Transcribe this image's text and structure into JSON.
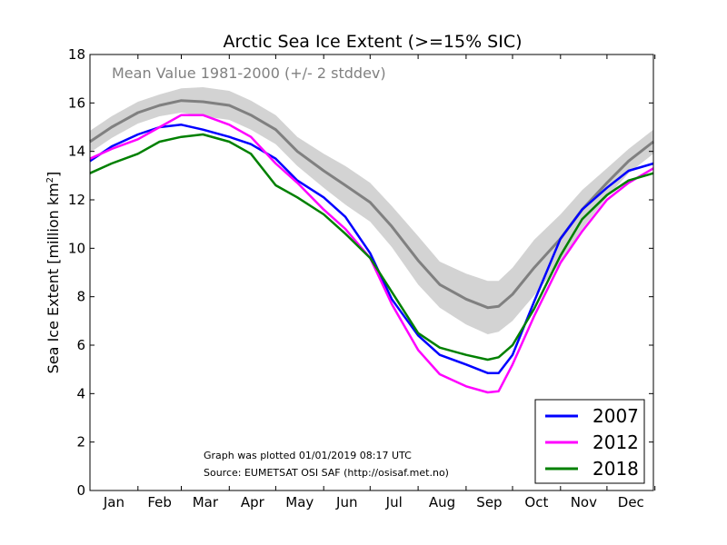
{
  "chart_data": {
    "type": "line",
    "title": "Arctic Sea Ice Extent (>=15% SIC)",
    "ylabel": "Sea Ice Extent [million km",
    "ylabel_sup": "2",
    "ylabel_close": "]",
    "ylim": [
      0,
      18
    ],
    "yticks": [
      "0",
      "2",
      "4",
      "6",
      "8",
      "10",
      "12",
      "14",
      "16",
      "18"
    ],
    "months": [
      "Jan",
      "Feb",
      "Mar",
      "Apr",
      "May",
      "Jun",
      "Jul",
      "Aug",
      "Sep",
      "Oct",
      "Nov",
      "Dec"
    ],
    "x": [
      1,
      15,
      32,
      46,
      60,
      74,
      91,
      105,
      121,
      135,
      152,
      166,
      182,
      196,
      213,
      227,
      244,
      258,
      265,
      274,
      288,
      305,
      319,
      335,
      349,
      365
    ],
    "mean": {
      "label": "Mean Value 1981-2000 (+/- 2 stddev)",
      "color": "#808080",
      "band_color": "#d3d3d3",
      "values": [
        14.4,
        15.0,
        15.6,
        15.9,
        16.1,
        16.05,
        15.9,
        15.5,
        14.9,
        14.0,
        13.2,
        12.6,
        11.9,
        10.9,
        9.5,
        8.5,
        7.9,
        7.55,
        7.6,
        8.1,
        9.2,
        10.4,
        11.6,
        12.7,
        13.6,
        14.4
      ],
      "band_half_width": [
        0.45,
        0.45,
        0.45,
        0.45,
        0.5,
        0.6,
        0.6,
        0.6,
        0.6,
        0.6,
        0.7,
        0.8,
        0.8,
        0.85,
        1.0,
        0.95,
        1.05,
        1.1,
        1.05,
        1.1,
        1.15,
        1.0,
        0.8,
        0.6,
        0.5,
        0.5
      ]
    },
    "series": [
      {
        "name": "2007",
        "color": "#0000ff",
        "values": [
          13.6,
          14.2,
          14.7,
          15.0,
          15.1,
          14.9,
          14.6,
          14.3,
          13.7,
          12.8,
          12.1,
          11.3,
          9.8,
          7.9,
          6.4,
          5.6,
          5.2,
          4.85,
          4.85,
          5.6,
          7.8,
          10.4,
          11.6,
          12.5,
          13.2,
          13.5
        ]
      },
      {
        "name": "2012",
        "color": "#ff00ff",
        "values": [
          13.7,
          14.1,
          14.5,
          15.0,
          15.5,
          15.5,
          15.1,
          14.6,
          13.5,
          12.7,
          11.6,
          10.8,
          9.6,
          7.7,
          5.8,
          4.8,
          4.3,
          4.05,
          4.1,
          5.2,
          7.2,
          9.4,
          10.7,
          12.0,
          12.7,
          13.3
        ]
      },
      {
        "name": "2018",
        "color": "#008000",
        "values": [
          13.1,
          13.5,
          13.9,
          14.4,
          14.6,
          14.7,
          14.4,
          13.9,
          12.6,
          12.1,
          11.4,
          10.6,
          9.6,
          8.2,
          6.5,
          5.9,
          5.6,
          5.4,
          5.5,
          6.0,
          7.5,
          9.7,
          11.2,
          12.2,
          12.8,
          13.1
        ]
      }
    ],
    "legend": "lower-right",
    "notes": [
      "Graph was plotted 01/01/2019 08:17 UTC",
      "Source: EUMETSAT OSI SAF (http://osisaf.met.no)"
    ]
  }
}
